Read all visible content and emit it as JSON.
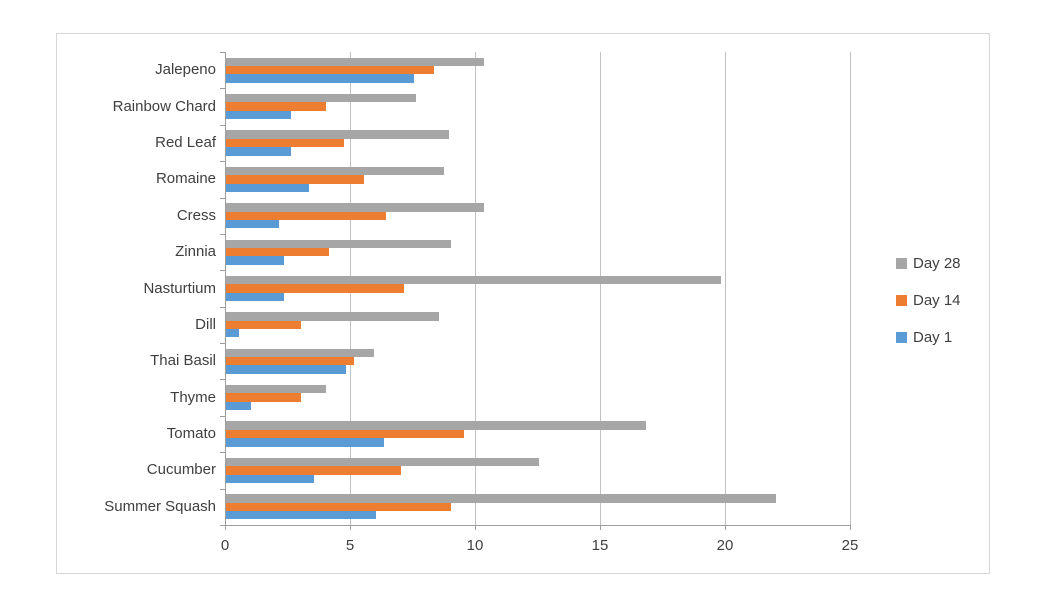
{
  "chart_data": {
    "type": "bar",
    "orientation": "horizontal",
    "title": "",
    "categories": [
      "Jalepeno",
      "Rainbow Chard",
      "Red Leaf",
      "Romaine",
      "Cress",
      "Zinnia",
      "Nasturtium",
      "Dill",
      "Thai Basil",
      "Thyme",
      "Tomato",
      "Cucumber",
      "Summer Squash"
    ],
    "series": [
      {
        "name": "Day 28",
        "color": "#A6A6A6",
        "values": [
          10.3,
          7.6,
          8.9,
          8.7,
          10.3,
          9.0,
          19.8,
          8.5,
          5.9,
          4.0,
          16.8,
          12.5,
          22.0
        ]
      },
      {
        "name": "Day 14",
        "color": "#ED7D31",
        "values": [
          8.3,
          4.0,
          4.7,
          5.5,
          6.4,
          4.1,
          7.1,
          3.0,
          5.1,
          3.0,
          9.5,
          7.0,
          9.0
        ]
      },
      {
        "name": "Day 1",
        "color": "#5B9BD5",
        "values": [
          7.5,
          2.6,
          2.6,
          3.3,
          2.1,
          2.3,
          2.3,
          0.5,
          4.8,
          1.0,
          6.3,
          3.5,
          6.0
        ]
      }
    ],
    "xlim": [
      0,
      25
    ],
    "x_tick_values": [
      0,
      5,
      10,
      15,
      20,
      25
    ],
    "x_tick_labels": [
      "0",
      "5",
      "10",
      "15",
      "20",
      "25"
    ],
    "grid": true,
    "legend_position": "right-middle",
    "legend_entries": [
      "Day 28",
      "Day 14",
      "Day 1"
    ],
    "bar_group_order": "Day 28 top, Day 14 middle, Day 1 bottom"
  },
  "style": {
    "background": "#ffffff",
    "text_color": "#3f3f3f",
    "gridline_color": "#c0c0c0",
    "axis_color": "#9d9d9d",
    "chart_border_color": "#d6d6d6"
  }
}
